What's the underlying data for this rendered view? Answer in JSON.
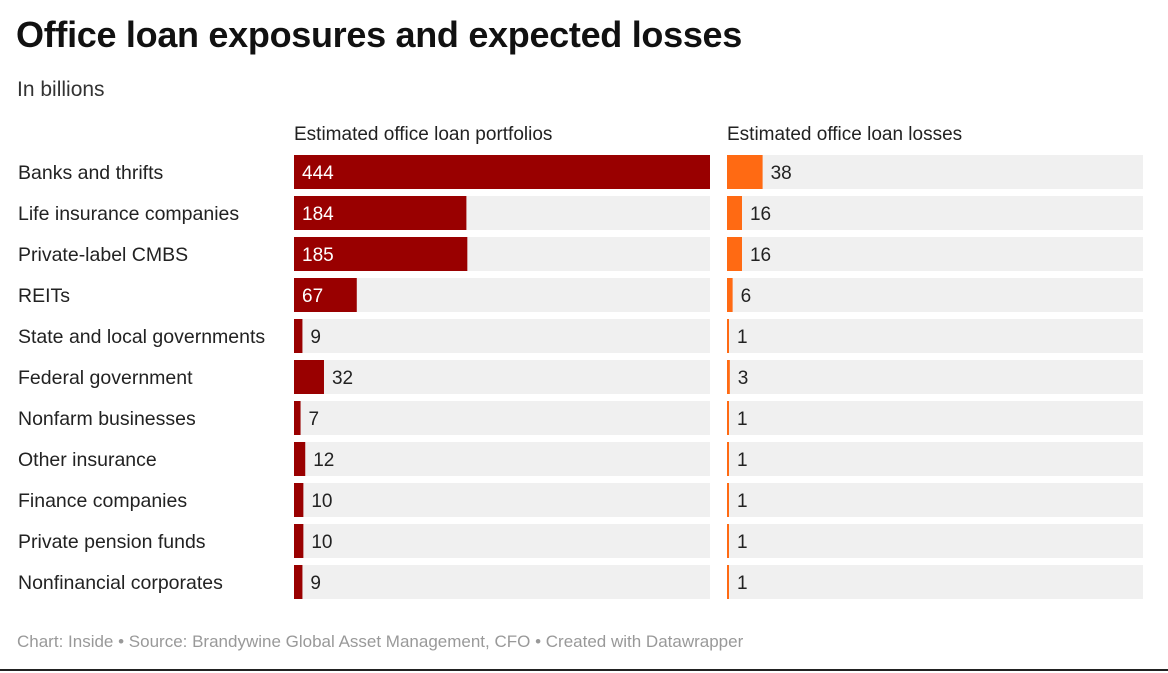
{
  "header": {
    "title": "Office loan exposures and expected losses",
    "subtitle": "In billions"
  },
  "footer": {
    "text": "Chart: Inside • Source: Brandywine Global Asset Management, CFO • Created with Datawrapper"
  },
  "colors": {
    "portfolio_bar": "#990000",
    "losses_bar": "#ff6a13",
    "track": "#f0f0f0"
  },
  "chart_data": {
    "type": "bar",
    "orientation": "horizontal",
    "title": "Office loan exposures and expected losses",
    "subtitle": "In billions",
    "categories": [
      "Banks and thrifts",
      "Life insurance companies",
      "Private-label CMBS",
      "REITs",
      "State and local governments",
      "Federal government",
      "Nonfarm businesses",
      "Other insurance",
      "Finance companies",
      "Private pension funds",
      "Nonfinancial corporates"
    ],
    "series": [
      {
        "name": "Estimated office loan portfolios",
        "values": [
          444,
          184,
          185,
          67,
          9,
          32,
          7,
          12,
          10,
          10,
          9
        ],
        "xlim": [
          0,
          444
        ]
      },
      {
        "name": "Estimated office loan losses",
        "values": [
          38,
          16,
          16,
          6,
          1,
          3,
          1,
          1,
          1,
          1,
          1
        ],
        "xlim": [
          0,
          444
        ]
      }
    ],
    "grid": false,
    "legend": "none"
  }
}
